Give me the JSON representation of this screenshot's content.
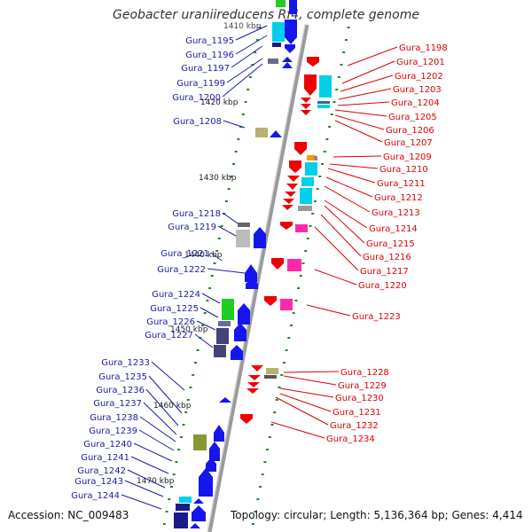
{
  "title": "Geobacter uraniireducens Rf4, complete genome",
  "footer": {
    "accession": "Accession: NC_009483",
    "topology": "Topology: circular; Length: 5,136,364 bp; Genes: 4,414"
  },
  "axis": {
    "top_label_partial": "1410 kbp",
    "ticks": [
      "1420 kbp",
      "1430 kbp",
      "1440 kbp",
      "1450 kbp",
      "1460 kbp",
      "1470 kbp"
    ]
  },
  "left_labels": [
    "Gura_1195",
    "Gura_1196",
    "Gura_1197",
    "Gura_1199",
    "Gura_1200",
    "Gura_1208",
    "Gura_1218",
    "Gura_1219",
    "Gura_1221",
    "Gura_1222",
    "Gura_1224",
    "Gura_1225",
    "Gura_1226",
    "Gura_1227",
    "Gura_1233",
    "Gura_1235",
    "Gura_1236",
    "Gura_1237",
    "Gura_1238",
    "Gura_1239",
    "Gura_1240",
    "Gura_1241",
    "Gura_1242",
    "Gura_1243",
    "Gura_1244"
  ],
  "right_labels": [
    "Gura_1198",
    "Gura_1201",
    "Gura_1202",
    "Gura_1203",
    "Gura_1204",
    "Gura_1205",
    "Gura_1206",
    "Gura_1207",
    "Gura_1209",
    "Gura_1210",
    "Gura_1211",
    "Gura_1212",
    "Gura_1213",
    "Gura_1214",
    "Gura_1215",
    "Gura_1216",
    "Gura_1217",
    "Gura_1220",
    "Gura_1223",
    "Gura_1228",
    "Gura_1229",
    "Gura_1230",
    "Gura_1231",
    "Gura_1232",
    "Gura_1234"
  ],
  "colors": {
    "forward_label": "#1a1aa8",
    "reverse_label": "#dd0000",
    "forward_gene": "#1515ee",
    "reverse_gene": "#ee0000",
    "backbone": "#999999",
    "tick": "#1e8a1e"
  }
}
